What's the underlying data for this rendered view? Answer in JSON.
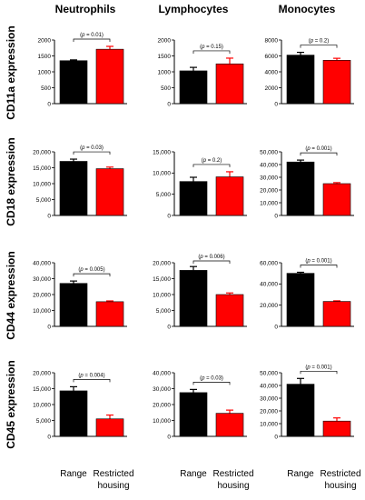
{
  "column_titles": [
    "Neutrophils",
    "Lymphocytes",
    "Monocytes"
  ],
  "row_titles": [
    "CD11a expression",
    "CD18 expression",
    "CD44 expression",
    "CD45 expression"
  ],
  "x_labels": [
    "Range",
    [
      "Restricted",
      "housing"
    ]
  ],
  "colors": {
    "range": "#000000",
    "restricted": "#ff0000"
  },
  "chart_data": [
    {
      "type": "bar",
      "row": 0,
      "col": 0,
      "ylim": [
        0,
        2000
      ],
      "yticks": [
        "0",
        "500",
        "1000",
        "1500",
        "2000"
      ],
      "ytick_values": [
        0,
        500,
        1000,
        1500,
        2000
      ],
      "values": [
        1350,
        1710
      ],
      "errors": [
        25,
        90
      ],
      "annotation": "(p = 0.01)"
    },
    {
      "type": "bar",
      "row": 0,
      "col": 1,
      "ylim": [
        0,
        2000
      ],
      "yticks": [
        "0",
        "500",
        "1000",
        "1500",
        "2000"
      ],
      "ytick_values": [
        0,
        500,
        1000,
        1500,
        2000
      ],
      "values": [
        1030,
        1250
      ],
      "errors": [
        110,
        180
      ],
      "annotation": "(p = 0.15)"
    },
    {
      "type": "bar",
      "row": 0,
      "col": 2,
      "ylim": [
        0,
        8000
      ],
      "yticks": [
        "0",
        "2000",
        "4000",
        "6000",
        "8000"
      ],
      "ytick_values": [
        0,
        2000,
        4000,
        6000,
        8000
      ],
      "values": [
        6100,
        5450
      ],
      "errors": [
        350,
        250
      ],
      "annotation": "(p = 0.2)"
    },
    {
      "type": "bar",
      "row": 1,
      "col": 0,
      "ylim": [
        0,
        20000
      ],
      "yticks": [
        "0",
        "5,000",
        "10,000",
        "15,000",
        "20,000"
      ],
      "ytick_values": [
        0,
        5000,
        10000,
        15000,
        20000
      ],
      "values": [
        17000,
        14700
      ],
      "errors": [
        700,
        500
      ],
      "annotation": "(p = 0.03)"
    },
    {
      "type": "bar",
      "row": 1,
      "col": 1,
      "ylim": [
        0,
        15000
      ],
      "yticks": [
        "0",
        "5,000",
        "10,000",
        "15,000"
      ],
      "ytick_values": [
        0,
        5000,
        10000,
        15000
      ],
      "values": [
        8000,
        9100
      ],
      "errors": [
        1000,
        1200
      ],
      "annotation": "(p = 0.2)"
    },
    {
      "type": "bar",
      "row": 1,
      "col": 2,
      "ylim": [
        0,
        50000
      ],
      "yticks": [
        "0",
        "10,000",
        "20,000",
        "30,000",
        "40,000",
        "50,000"
      ],
      "ytick_values": [
        0,
        10000,
        20000,
        30000,
        40000,
        50000
      ],
      "values": [
        42000,
        25000
      ],
      "errors": [
        1500,
        800
      ],
      "annotation": "(p = 0.001)"
    },
    {
      "type": "bar",
      "row": 2,
      "col": 0,
      "ylim": [
        0,
        40000
      ],
      "yticks": [
        "0",
        "10,000",
        "20,000",
        "30,000",
        "40,000"
      ],
      "ytick_values": [
        0,
        10000,
        20000,
        30000,
        40000
      ],
      "values": [
        27000,
        15500
      ],
      "errors": [
        1500,
        500
      ],
      "annotation": "(p = 0.005)"
    },
    {
      "type": "bar",
      "row": 2,
      "col": 1,
      "ylim": [
        0,
        20000
      ],
      "yticks": [
        "0",
        "5,000",
        "10,000",
        "15,000",
        "20,000"
      ],
      "ytick_values": [
        0,
        5000,
        10000,
        15000,
        20000
      ],
      "values": [
        17600,
        10000
      ],
      "errors": [
        1200,
        500
      ],
      "annotation": "(p = 0.006)"
    },
    {
      "type": "bar",
      "row": 2,
      "col": 2,
      "ylim": [
        0,
        60000
      ],
      "yticks": [
        "0",
        "20,000",
        "40,000",
        "60,000"
      ],
      "ytick_values": [
        0,
        20000,
        40000,
        60000
      ],
      "values": [
        50000,
        23500
      ],
      "errors": [
        1000,
        600
      ],
      "annotation": "(p = 0.001)"
    },
    {
      "type": "bar",
      "row": 3,
      "col": 0,
      "ylim": [
        0,
        20000
      ],
      "yticks": [
        "0",
        "5,000",
        "10,000",
        "15,000",
        "20,000"
      ],
      "ytick_values": [
        0,
        5000,
        10000,
        15000,
        20000
      ],
      "values": [
        14300,
        5500
      ],
      "errors": [
        1300,
        1200
      ],
      "annotation": "(p = 0.004)"
    },
    {
      "type": "bar",
      "row": 3,
      "col": 1,
      "ylim": [
        0,
        40000
      ],
      "yticks": [
        "0",
        "10,000",
        "20,000",
        "30,000",
        "40,000"
      ],
      "ytick_values": [
        0,
        10000,
        20000,
        30000,
        40000
      ],
      "values": [
        27500,
        14500
      ],
      "errors": [
        2000,
        2000
      ],
      "annotation": "(p = 0.03)"
    },
    {
      "type": "bar",
      "row": 3,
      "col": 2,
      "ylim": [
        0,
        50000
      ],
      "yticks": [
        "0",
        "10,000",
        "20,000",
        "30,000",
        "40,000",
        "50,000"
      ],
      "ytick_values": [
        0,
        10000,
        20000,
        30000,
        40000,
        50000
      ],
      "values": [
        41000,
        12000
      ],
      "errors": [
        4500,
        2500
      ],
      "annotation": "(p = 0.001)"
    }
  ]
}
